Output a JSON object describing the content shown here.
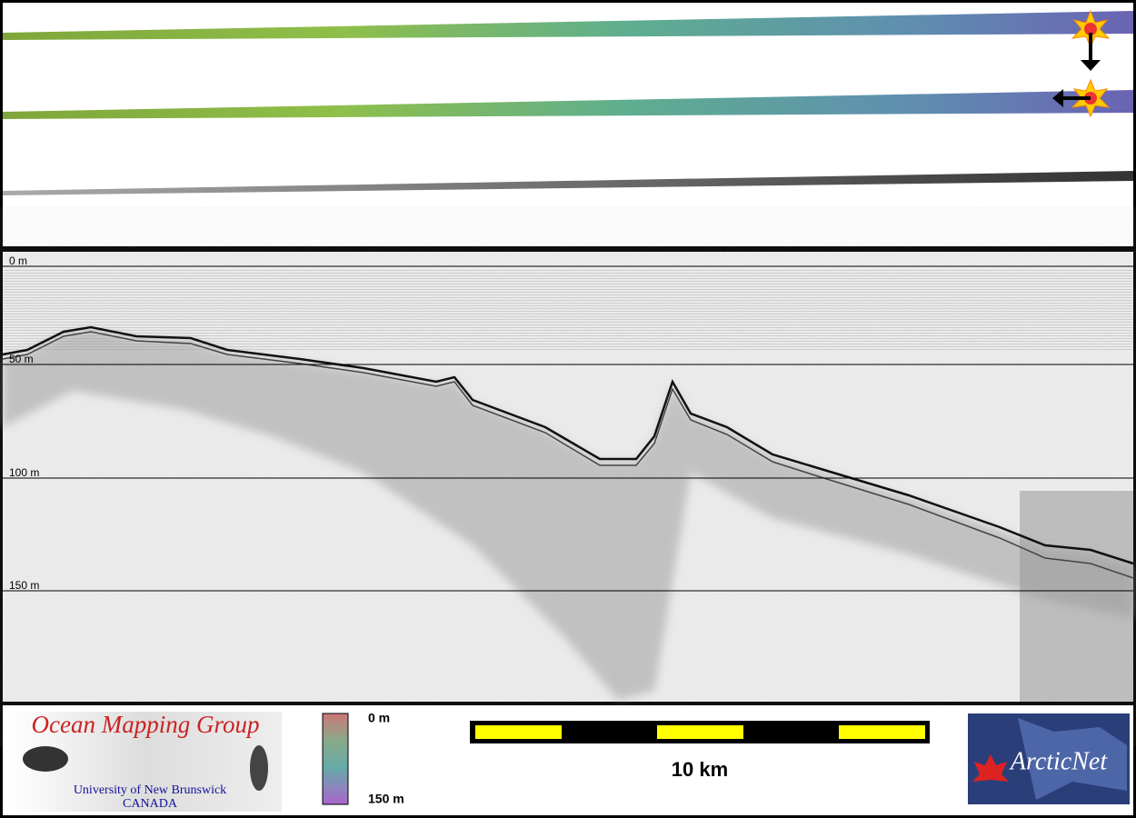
{
  "profile": {
    "depth_labels": [
      "0 m",
      "50 m",
      "100 m",
      "150 m"
    ]
  },
  "legend": {
    "colorbar_labels": [
      "0 m",
      "150 m"
    ],
    "scale_label": "10 km"
  },
  "logos": {
    "omg": {
      "title": "Ocean Mapping Group",
      "university": "University of New Brunswick",
      "country": "CANADA"
    },
    "arcticnet": "ArcticNet"
  }
}
